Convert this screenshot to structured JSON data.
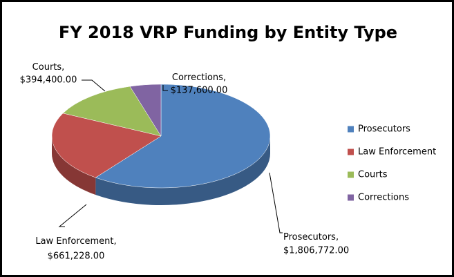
{
  "chart_data": {
    "type": "pie3d",
    "title": "FY 2018 VRP Funding by Entity Type",
    "categories": [
      "Prosecutors",
      "Law Enforcement",
      "Courts",
      "Corrections"
    ],
    "values": [
      1806772,
      661228,
      394400,
      137600
    ],
    "value_labels": [
      "$1,806,772.00",
      "$661,228.00",
      "$394,400.00",
      "$137,600.00"
    ],
    "colors": [
      "#4f81bd",
      "#c0504d",
      "#9bbb59",
      "#8064a2"
    ],
    "legend": "right"
  }
}
